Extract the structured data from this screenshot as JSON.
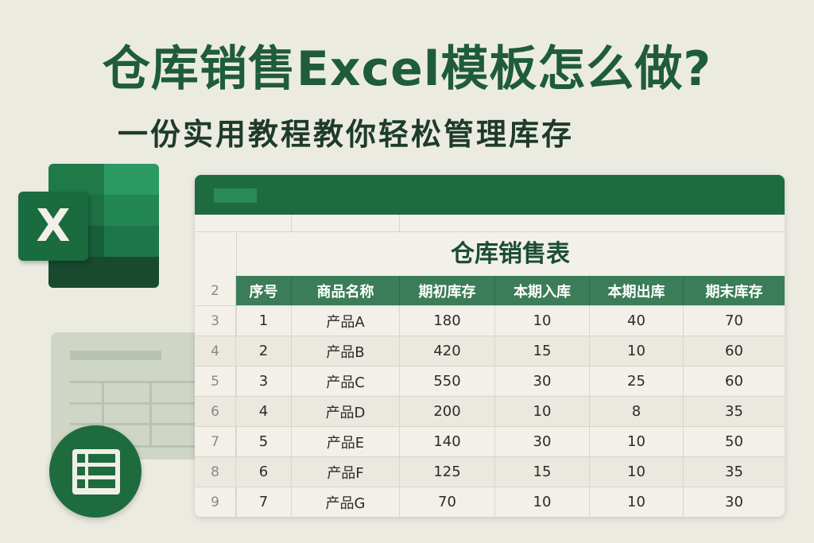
{
  "title": "仓库销售Excel模板怎么做?",
  "subtitle": "一份实用教程教你轻松管理库存",
  "logo": {
    "letter": "X"
  },
  "colors": {
    "brand": "#1f6b40",
    "header": "#3b7d58",
    "title": "#1f5c3a"
  },
  "sheet": {
    "title": "仓库销售表",
    "header_row_number": "2",
    "columns": [
      "序号",
      "商品名称",
      "期初库存",
      "本期入库",
      "本期出库",
      "期末库存"
    ],
    "rows": [
      {
        "rn": "3",
        "cells": [
          "1",
          "产品A",
          "180",
          "10",
          "40",
          "70"
        ]
      },
      {
        "rn": "4",
        "cells": [
          "2",
          "产品B",
          "420",
          "15",
          "10",
          "60"
        ]
      },
      {
        "rn": "5",
        "cells": [
          "3",
          "产品C",
          "550",
          "30",
          "25",
          "60"
        ]
      },
      {
        "rn": "6",
        "cells": [
          "4",
          "产品D",
          "200",
          "10",
          "8",
          "35"
        ]
      },
      {
        "rn": "7",
        "cells": [
          "5",
          "产品E",
          "140",
          "30",
          "10",
          "50"
        ]
      },
      {
        "rn": "8",
        "cells": [
          "6",
          "产品F",
          "125",
          "15",
          "10",
          "35"
        ]
      },
      {
        "rn": "9",
        "cells": [
          "7",
          "产品G",
          "70",
          "10",
          "10",
          "30"
        ]
      }
    ]
  }
}
